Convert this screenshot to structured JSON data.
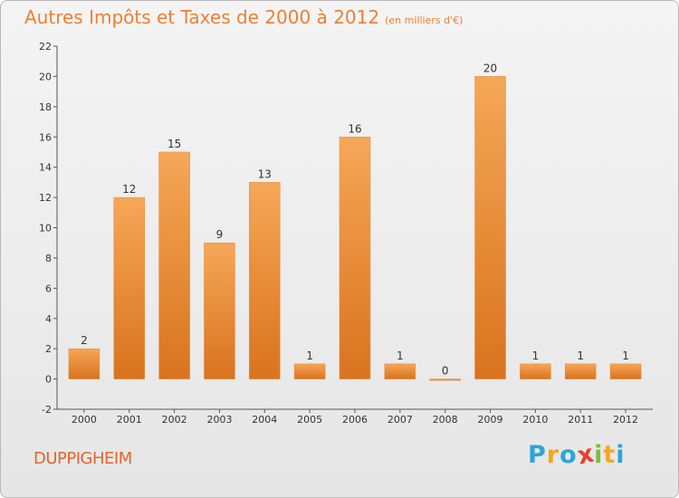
{
  "chart_data": {
    "type": "bar",
    "title": "Autres Impôts et Taxes de 2000 à 2012",
    "subtitle": "(en milliers d'€)",
    "categories": [
      "2000",
      "2001",
      "2002",
      "2003",
      "2004",
      "2005",
      "2006",
      "2007",
      "2008",
      "2009",
      "2010",
      "2011",
      "2012"
    ],
    "values": [
      2,
      12,
      15,
      9,
      13,
      1,
      16,
      1,
      0,
      20,
      1,
      1,
      1
    ],
    "ylim": [
      -2,
      22
    ],
    "yticks": [
      -2,
      0,
      2,
      4,
      6,
      8,
      10,
      12,
      14,
      16,
      18,
      20,
      22
    ],
    "grid": false,
    "legend": "none"
  },
  "commune": "DUPPIGHEIM",
  "logo": {
    "letters": [
      "P",
      "r",
      "o",
      "x",
      "i",
      "t",
      "i"
    ],
    "colors": [
      "#2aa6d9",
      "#f5a623",
      "#2aa6d9",
      "#e8402a",
      "#7bbf3a",
      "#f5a623",
      "#2aa6d9"
    ]
  },
  "colors": {
    "bar_light": "#f5a757",
    "bar_dark": "#d9731e",
    "title": "#ef7f32"
  }
}
